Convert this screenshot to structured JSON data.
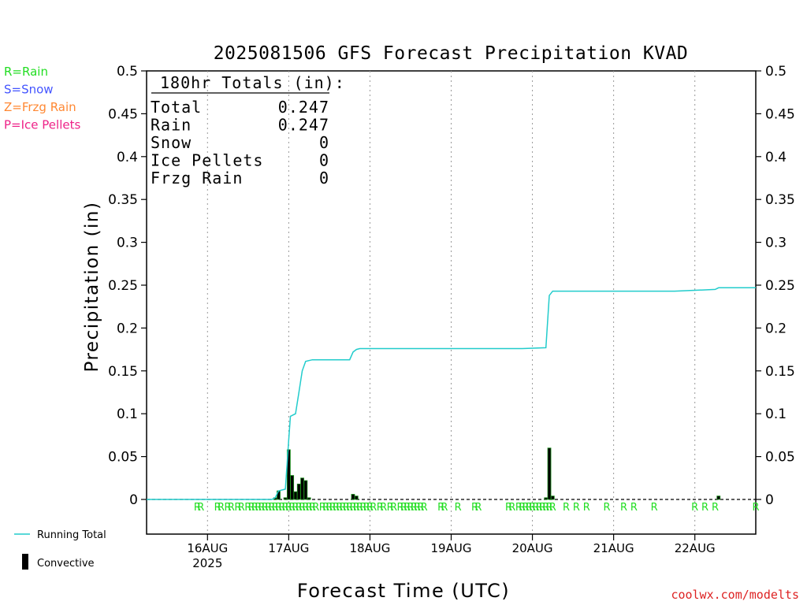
{
  "chart_data": {
    "type": "bar",
    "title": "2025081506 GFS Forecast Precipitation KVAD",
    "ylabel": "Precipitation (in)",
    "xlabel": "Forecast Time (UTC)",
    "credit": "coolwx.com/modelts",
    "ylim": [
      0,
      0.5
    ],
    "y_ticks": [
      0,
      0.05,
      0.1,
      0.15,
      0.2,
      0.25,
      0.3,
      0.35,
      0.4,
      0.45,
      0.5
    ],
    "y_tick_labels": [
      "0",
      "0.05",
      "0.1",
      "0.15",
      "0.2",
      "0.25",
      "0.3",
      "0.35",
      "0.4",
      "0.45",
      "0.5"
    ],
    "xlim_hours": [
      0,
      180
    ],
    "x_ticks": [
      {
        "hour": 18,
        "label": "16AUG",
        "sublabel": "2025"
      },
      {
        "hour": 42,
        "label": "17AUG",
        "sublabel": ""
      },
      {
        "hour": 66,
        "label": "18AUG",
        "sublabel": ""
      },
      {
        "hour": 90,
        "label": "19AUG",
        "sublabel": ""
      },
      {
        "hour": 114,
        "label": "20AUG",
        "sublabel": ""
      },
      {
        "hour": 138,
        "label": "21AUG",
        "sublabel": ""
      },
      {
        "hour": 162,
        "label": "22AUG",
        "sublabel": ""
      }
    ],
    "grid": "vertical dotted at day boundaries",
    "ptype_legend": [
      {
        "text": "R=Rain",
        "color": "#22dd22"
      },
      {
        "text": "S=Snow",
        "color": "#4455ff"
      },
      {
        "text": "Z=Frzg Rain",
        "color": "#ff8833"
      },
      {
        "text": "P=Ice Pellets",
        "color": "#ee2288"
      }
    ],
    "series_legend": [
      {
        "text": "Running Total",
        "color": "#22cccc",
        "kind": "line"
      },
      {
        "text": "Convective",
        "color": "#000000",
        "kind": "bar"
      }
    ],
    "totals_box": {
      "header": "180hr Totals (in):",
      "rows": [
        {
          "label": "Total",
          "value": "0.247"
        },
        {
          "label": "Rain",
          "value": "0.247"
        },
        {
          "label": "Snow",
          "value": "0"
        },
        {
          "label": "Ice Pellets",
          "value": "0"
        },
        {
          "label": "Frzg Rain",
          "value": "0"
        }
      ]
    },
    "series": [
      {
        "name": "Running Total",
        "color": "#22cccc",
        "points": [
          [
            0,
            0
          ],
          [
            37,
            0
          ],
          [
            38,
            0.002
          ],
          [
            39,
            0.01
          ],
          [
            41,
            0.012
          ],
          [
            42,
            0.07
          ],
          [
            42.5,
            0.097
          ],
          [
            44,
            0.1
          ],
          [
            45,
            0.125
          ],
          [
            46,
            0.15
          ],
          [
            47,
            0.161
          ],
          [
            48,
            0.162
          ],
          [
            49,
            0.163
          ],
          [
            60,
            0.163
          ],
          [
            61,
            0.172
          ],
          [
            62,
            0.175
          ],
          [
            63,
            0.176
          ],
          [
            75,
            0.176
          ],
          [
            87,
            0.176
          ],
          [
            99,
            0.176
          ],
          [
            111,
            0.176
          ],
          [
            118,
            0.177
          ],
          [
            119,
            0.238
          ],
          [
            120,
            0.243
          ],
          [
            132,
            0.243
          ],
          [
            144,
            0.243
          ],
          [
            156,
            0.243
          ],
          [
            162,
            0.244
          ],
          [
            168,
            0.245
          ],
          [
            169,
            0.247
          ],
          [
            180,
            0.247
          ]
        ]
      },
      {
        "name": "Convective",
        "color": "#000000",
        "bars": [
          [
            38,
            0.002
          ],
          [
            39,
            0.01
          ],
          [
            41,
            0.002
          ],
          [
            42,
            0.058
          ],
          [
            43,
            0.028
          ],
          [
            44,
            0.009
          ],
          [
            45,
            0.018
          ],
          [
            46,
            0.025
          ],
          [
            47,
            0.022
          ],
          [
            48,
            0.002
          ],
          [
            61,
            0.006
          ],
          [
            62,
            0.004
          ],
          [
            118,
            0.002
          ],
          [
            119,
            0.06
          ],
          [
            120,
            0.004
          ],
          [
            169,
            0.004
          ]
        ]
      }
    ],
    "ptype_marks": {
      "symbol": "R",
      "color": "#22dd22",
      "hours": [
        15,
        16,
        21,
        22,
        24,
        25,
        27,
        28,
        30,
        31,
        32,
        33,
        34,
        35,
        36,
        37,
        38,
        39,
        40,
        41,
        42,
        43,
        44,
        45,
        46,
        47,
        48,
        49,
        50,
        52,
        53,
        54,
        55,
        56,
        57,
        58,
        59,
        60,
        61,
        62,
        63,
        64,
        65,
        66,
        67,
        69,
        70,
        72,
        73,
        75,
        76,
        77,
        78,
        79,
        80,
        81,
        82,
        87,
        88,
        92,
        97,
        98,
        107,
        108,
        110,
        111,
        112,
        113,
        114,
        115,
        116,
        117,
        118,
        119,
        120,
        124,
        127,
        130,
        136,
        141,
        144,
        150,
        162,
        165,
        168,
        180
      ]
    }
  }
}
